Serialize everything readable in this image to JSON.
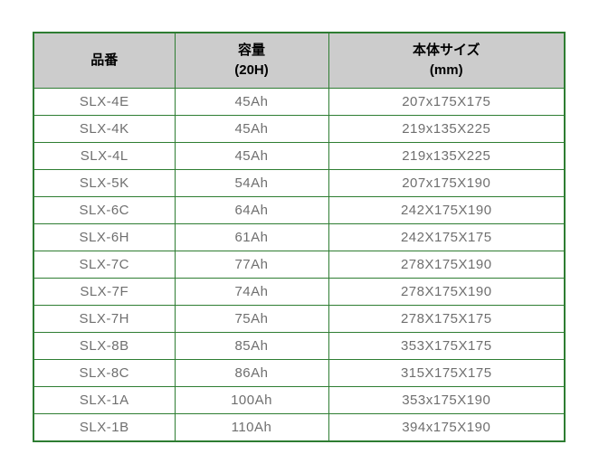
{
  "colors": {
    "border_green": "#2e7d32",
    "header_bg": "#cccccc",
    "header_text": "#000000",
    "cell_text": "#6f6f6f",
    "page_bg": "#ffffff"
  },
  "table": {
    "headers": [
      {
        "line1": "品番",
        "line2": ""
      },
      {
        "line1": "容量",
        "line2": "(20H)"
      },
      {
        "line1": "本体サイズ",
        "line2": "(mm)"
      }
    ],
    "rows": [
      [
        "SLX-4E",
        "45Ah",
        "207x175X175"
      ],
      [
        "SLX-4K",
        "45Ah",
        "219x135X225"
      ],
      [
        "SLX-4L",
        "45Ah",
        "219x135X225"
      ],
      [
        "SLX-5K",
        "54Ah",
        "207x175X190"
      ],
      [
        "SLX-6C",
        "64Ah",
        "242X175X190"
      ],
      [
        "SLX-6H",
        "61Ah",
        "242X175X175"
      ],
      [
        "SLX-7C",
        "77Ah",
        "278X175X190"
      ],
      [
        "SLX-7F",
        "74Ah",
        "278X175X190"
      ],
      [
        "SLX-7H",
        "75Ah",
        "278X175X175"
      ],
      [
        "SLX-8B",
        "85Ah",
        "353X175X175"
      ],
      [
        "SLX-8C",
        "86Ah",
        "315X175X175"
      ],
      [
        "SLX-1A",
        "100Ah",
        "353x175X190"
      ],
      [
        "SLX-1B",
        "110Ah",
        "394x175X190"
      ]
    ]
  }
}
